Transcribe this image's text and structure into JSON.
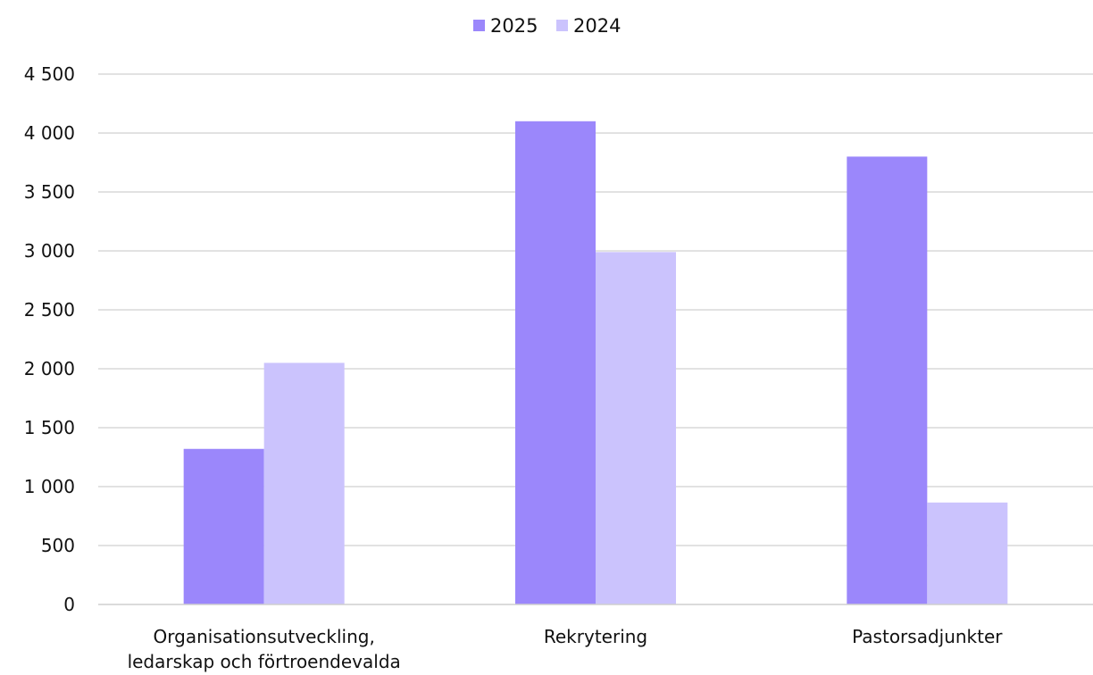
{
  "chart_data": {
    "type": "bar",
    "title": "",
    "xlabel": "",
    "ylabel": "",
    "categories": [
      [
        "Organisationsutveckling,",
        "ledarskap och förtroendevalda"
      ],
      [
        "Rekrytering"
      ],
      [
        "Pastorsadjunkter"
      ]
    ],
    "series": [
      {
        "name": "2025",
        "color": "#9b87fb",
        "values": [
          1320,
          4100,
          3800
        ]
      },
      {
        "name": "2024",
        "color": "#cbc3fd",
        "values": [
          2050,
          2990,
          865
        ]
      }
    ],
    "ylim": [
      0,
      4500
    ],
    "yticks": [
      0,
      500,
      1000,
      1500,
      2000,
      2500,
      3000,
      3500,
      4000,
      4500
    ],
    "ytick_labels": [
      "0",
      "500",
      "1 000",
      "1 500",
      "2 000",
      "2 500",
      "3 000",
      "3 500",
      "4 000",
      "4 500"
    ],
    "grid": true,
    "legend": "top-center"
  }
}
